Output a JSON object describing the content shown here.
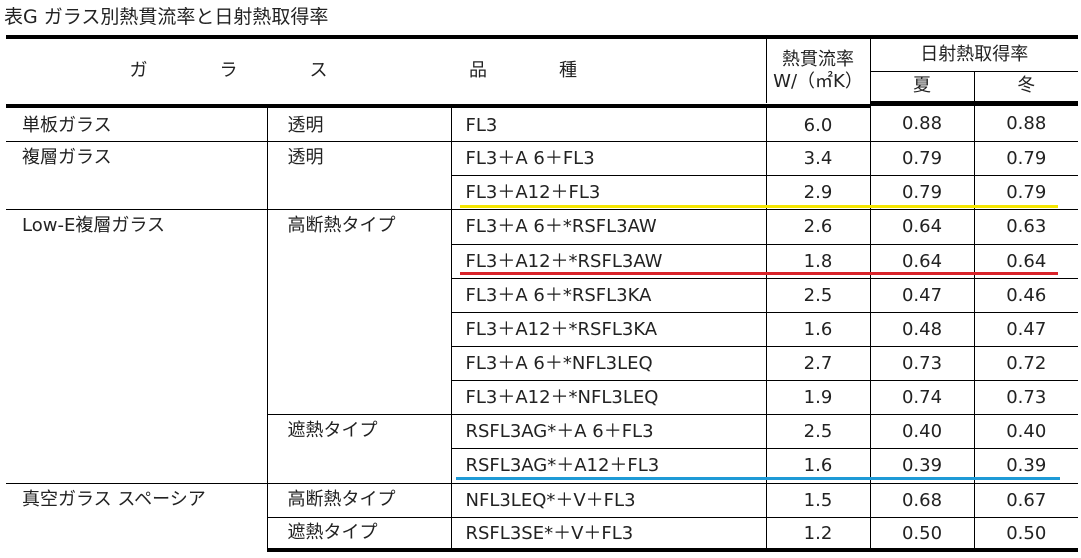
{
  "title": "表G ガラス別熱貫流率と日射熱取得率",
  "headers": {
    "glass": "ガ　　　　ラ　　　　ス",
    "product": "品　　　　種",
    "u_value_line1": "熱貫流率",
    "u_value_line2": "W/（㎡K）",
    "solar": "日射熱取得率",
    "summer": "夏",
    "winter": "冬"
  },
  "rows": [
    {
      "glass": "単板ガラス",
      "type": "透明",
      "product": "FL3",
      "u": "6.0",
      "summer": "0.88",
      "winter": "0.88"
    },
    {
      "glass": "複層ガラス",
      "type": "透明",
      "product": "FL3＋A 6＋FL3",
      "u": "3.4",
      "summer": "0.79",
      "winter": "0.79"
    },
    {
      "glass": "",
      "type": "",
      "product": "FL3＋A12＋FL3",
      "u": "2.9",
      "summer": "0.79",
      "winter": "0.79"
    },
    {
      "glass": "Low-E複層ガラス",
      "type": "高断熱タイプ",
      "product": "FL3＋A 6＋*RSFL3AW",
      "u": "2.6",
      "summer": "0.64",
      "winter": "0.63"
    },
    {
      "glass": "",
      "type": "",
      "product": "FL3＋A12＋*RSFL3AW",
      "u": "1.8",
      "summer": "0.64",
      "winter": "0.64"
    },
    {
      "glass": "",
      "type": "",
      "product": "FL3＋A 6＋*RSFL3KA",
      "u": "2.5",
      "summer": "0.47",
      "winter": "0.46"
    },
    {
      "glass": "",
      "type": "",
      "product": "FL3＋A12＋*RSFL3KA",
      "u": "1.6",
      "summer": "0.48",
      "winter": "0.47"
    },
    {
      "glass": "",
      "type": "",
      "product": "FL3＋A 6＋*NFL3LEQ",
      "u": "2.7",
      "summer": "0.73",
      "winter": "0.72"
    },
    {
      "glass": "",
      "type": "",
      "product": "FL3＋A12＋*NFL3LEQ",
      "u": "1.9",
      "summer": "0.74",
      "winter": "0.73"
    },
    {
      "glass": "",
      "type": "遮熱タイプ",
      "product": "RSFL3AG*＋A 6＋FL3",
      "u": "2.5",
      "summer": "0.40",
      "winter": "0.40"
    },
    {
      "glass": "",
      "type": "",
      "product": "RSFL3AG*＋A12＋FL3",
      "u": "1.6",
      "summer": "0.39",
      "winter": "0.39"
    },
    {
      "glass": "真空ガラス スペーシア",
      "type": "高断熱タイプ",
      "product": "NFL3LEQ*＋V＋FL3",
      "u": "1.5",
      "summer": "0.68",
      "winter": "0.67"
    },
    {
      "glass": "",
      "type": "遮熱タイプ",
      "product": "RSFL3SE*＋V＋FL3",
      "u": "1.2",
      "summer": "0.50",
      "winter": "0.50"
    }
  ],
  "highlight_colors": {
    "yellow": "#f5e600",
    "red": "#d9232a",
    "blue": "#1e9ad6"
  }
}
